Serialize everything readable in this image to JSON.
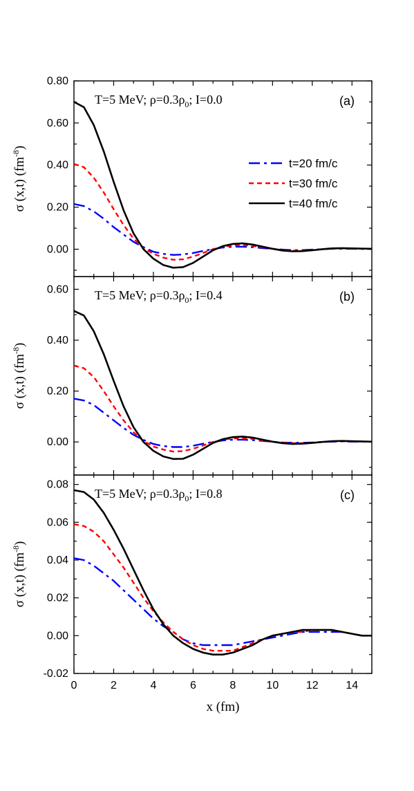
{
  "chart_data": {
    "type": "line",
    "xlabel": "x (fm)",
    "xlim": [
      0,
      15
    ],
    "x_ticks": [
      "0",
      "2",
      "4",
      "6",
      "8",
      "10",
      "12",
      "14"
    ],
    "legend": {
      "placement": "upper-right of panel (a)",
      "entries": [
        "t=20 fm/c",
        "t=30 fm/c",
        "t=40 fm/c"
      ]
    },
    "series_styles": [
      {
        "label": "t=20 fm/c",
        "color": "#0000ff",
        "dash": "dash-dot"
      },
      {
        "label": "t=30 fm/c",
        "color": "#ff0000",
        "dash": "dash"
      },
      {
        "label": "t=40 fm/c",
        "color": "#000000",
        "dash": "solid"
      }
    ],
    "panels": [
      {
        "tag": "(a)",
        "annotation_main": "T=5 MeV; ρ=0.3ρ",
        "annotation_sub": "0",
        "annotation_tail": "; I=0.0",
        "ylabel_main": "σ (x,t) (fm",
        "ylabel_sup": "-8",
        "ylabel_tail": ")",
        "ylim": [
          -0.13,
          0.8
        ],
        "y_ticks": [
          {
            "v": 0.0,
            "label": "0.00"
          },
          {
            "v": 0.2,
            "label": "0.20"
          },
          {
            "v": 0.4,
            "label": "0.40"
          },
          {
            "v": 0.6,
            "label": "0.60"
          },
          {
            "v": 0.8,
            "label": "0.80"
          }
        ],
        "series": [
          {
            "name": "t=20 fm/c",
            "x": [
              0,
              0.5,
              1,
              1.5,
              2,
              2.5,
              3,
              3.5,
              4,
              4.5,
              5,
              5.5,
              6,
              6.5,
              7,
              7.5,
              8,
              8.5,
              9,
              9.5,
              10,
              10.5,
              11,
              11.5,
              12,
              12.5,
              13,
              13.5,
              14,
              14.5,
              15
            ],
            "values": [
              0.215,
              0.205,
              0.18,
              0.145,
              0.105,
              0.07,
              0.035,
              0.01,
              -0.012,
              -0.022,
              -0.027,
              -0.025,
              -0.018,
              -0.008,
              0.0,
              0.008,
              0.012,
              0.012,
              0.01,
              0.005,
              0.002,
              -0.002,
              -0.004,
              -0.004,
              -0.002,
              0.0,
              0.002,
              0.002,
              0.002,
              0.001,
              0.001
            ]
          },
          {
            "name": "t=30 fm/c",
            "x": [
              0,
              0.5,
              1,
              1.5,
              2,
              2.5,
              3,
              3.5,
              4,
              4.5,
              5,
              5.5,
              6,
              6.5,
              7,
              7.5,
              8,
              8.5,
              9,
              9.5,
              10,
              10.5,
              11,
              11.5,
              12,
              12.5,
              13,
              13.5,
              14,
              14.5,
              15
            ],
            "values": [
              0.405,
              0.39,
              0.34,
              0.27,
              0.19,
              0.115,
              0.05,
              0.005,
              -0.022,
              -0.04,
              -0.05,
              -0.048,
              -0.035,
              -0.018,
              0.0,
              0.012,
              0.018,
              0.02,
              0.016,
              0.008,
              0.002,
              -0.004,
              -0.007,
              -0.007,
              -0.004,
              0.0,
              0.003,
              0.004,
              0.003,
              0.002,
              0.001
            ]
          },
          {
            "name": "t=40 fm/c",
            "x": [
              0,
              0.5,
              1,
              1.5,
              2,
              2.5,
              3,
              3.5,
              4,
              4.5,
              5,
              5.5,
              6,
              6.5,
              7,
              7.5,
              8,
              8.5,
              9,
              9.5,
              10,
              10.5,
              11,
              11.5,
              12,
              12.5,
              13,
              13.5,
              14,
              14.5,
              15
            ],
            "values": [
              0.7,
              0.675,
              0.59,
              0.465,
              0.32,
              0.185,
              0.075,
              0.0,
              -0.045,
              -0.075,
              -0.088,
              -0.085,
              -0.065,
              -0.035,
              -0.005,
              0.015,
              0.025,
              0.028,
              0.022,
              0.012,
              0.002,
              -0.006,
              -0.01,
              -0.009,
              -0.005,
              0.0,
              0.004,
              0.005,
              0.004,
              0.003,
              0.002
            ]
          }
        ]
      },
      {
        "tag": "(b)",
        "annotation_main": "T=5 MeV; ρ=0.3ρ",
        "annotation_sub": "0",
        "annotation_tail": "; I=0.4",
        "ylabel_main": "σ (x,t) (fm",
        "ylabel_sup": "-8",
        "ylabel_tail": ")",
        "ylim": [
          -0.13,
          0.65
        ],
        "y_ticks": [
          {
            "v": 0.0,
            "label": "0.00"
          },
          {
            "v": 0.2,
            "label": "0.20"
          },
          {
            "v": 0.4,
            "label": "0.40"
          },
          {
            "v": 0.6,
            "label": "0.60"
          }
        ],
        "series": [
          {
            "name": "t=20 fm/c",
            "x": [
              0,
              0.5,
              1,
              1.5,
              2,
              2.5,
              3,
              3.5,
              4,
              4.5,
              5,
              5.5,
              6,
              6.5,
              7,
              7.5,
              8,
              8.5,
              9,
              9.5,
              10,
              10.5,
              11,
              11.5,
              12,
              12.5,
              13,
              13.5,
              14,
              14.5,
              15
            ],
            "values": [
              0.17,
              0.163,
              0.145,
              0.115,
              0.085,
              0.055,
              0.028,
              0.008,
              -0.008,
              -0.016,
              -0.02,
              -0.02,
              -0.015,
              -0.007,
              0.0,
              0.006,
              0.009,
              0.009,
              0.007,
              0.004,
              0.001,
              -0.002,
              -0.003,
              -0.003,
              -0.002,
              0.0,
              0.001,
              0.002,
              0.001,
              0.001,
              0.001
            ]
          },
          {
            "name": "t=30 fm/c",
            "x": [
              0,
              0.5,
              1,
              1.5,
              2,
              2.5,
              3,
              3.5,
              4,
              4.5,
              5,
              5.5,
              6,
              6.5,
              7,
              7.5,
              8,
              8.5,
              9,
              9.5,
              10,
              10.5,
              11,
              11.5,
              12,
              12.5,
              13,
              13.5,
              14,
              14.5,
              15
            ],
            "values": [
              0.3,
              0.29,
              0.255,
              0.2,
              0.14,
              0.085,
              0.038,
              0.004,
              -0.018,
              -0.03,
              -0.038,
              -0.036,
              -0.027,
              -0.014,
              0.0,
              0.009,
              0.014,
              0.015,
              0.012,
              0.006,
              0.001,
              -0.003,
              -0.005,
              -0.005,
              -0.003,
              0.0,
              0.002,
              0.003,
              0.002,
              0.002,
              0.001
            ]
          },
          {
            "name": "t=40 fm/c",
            "x": [
              0,
              0.5,
              1,
              1.5,
              2,
              2.5,
              3,
              3.5,
              4,
              4.5,
              5,
              5.5,
              6,
              6.5,
              7,
              7.5,
              8,
              8.5,
              9,
              9.5,
              10,
              10.5,
              11,
              11.5,
              12,
              12.5,
              13,
              13.5,
              14,
              14.5,
              15
            ],
            "values": [
              0.515,
              0.497,
              0.435,
              0.345,
              0.24,
              0.14,
              0.058,
              0.0,
              -0.035,
              -0.057,
              -0.067,
              -0.066,
              -0.05,
              -0.027,
              -0.004,
              0.011,
              0.019,
              0.021,
              0.017,
              0.009,
              0.001,
              -0.005,
              -0.008,
              -0.007,
              -0.004,
              0.0,
              0.003,
              0.004,
              0.003,
              0.002,
              0.001
            ]
          }
        ]
      },
      {
        "tag": "(c)",
        "annotation_main": "T=5 MeV; ρ=0.3ρ",
        "annotation_sub": "0",
        "annotation_tail": "; I=0.8",
        "ylabel_main": "σ (x,t) (fm",
        "ylabel_sup": "-8",
        "ylabel_tail": ")",
        "ylim": [
          -0.02,
          0.085
        ],
        "y_ticks": [
          {
            "v": -0.02,
            "label": "-0.02"
          },
          {
            "v": 0.0,
            "label": "0.00"
          },
          {
            "v": 0.02,
            "label": "0.02"
          },
          {
            "v": 0.04,
            "label": "0.04"
          },
          {
            "v": 0.06,
            "label": "0.06"
          },
          {
            "v": 0.08,
            "label": "0.08"
          }
        ],
        "series": [
          {
            "name": "t=20 fm/c",
            "x": [
              0,
              0.5,
              1,
              1.5,
              2,
              2.5,
              3,
              3.5,
              4,
              4.5,
              5,
              5.5,
              6,
              6.5,
              7,
              7.5,
              8,
              8.5,
              9,
              9.5,
              10,
              10.5,
              11,
              11.5,
              12,
              12.5,
              13,
              13.5,
              14,
              14.5,
              15
            ],
            "values": [
              0.041,
              0.04,
              0.037,
              0.033,
              0.029,
              0.024,
              0.019,
              0.014,
              0.009,
              0.005,
              0.002,
              -0.002,
              -0.004,
              -0.005,
              -0.005,
              -0.005,
              -0.005,
              -0.004,
              -0.003,
              -0.002,
              -0.001,
              0.0,
              0.001,
              0.002,
              0.002,
              0.002,
              0.002,
              0.002,
              0.001,
              0.0,
              0.0
            ]
          },
          {
            "name": "t=30 fm/c",
            "x": [
              0,
              0.5,
              1,
              1.5,
              2,
              2.5,
              3,
              3.5,
              4,
              4.5,
              5,
              5.5,
              6,
              6.5,
              7,
              7.5,
              8,
              8.5,
              9,
              9.5,
              10,
              10.5,
              11,
              11.5,
              12,
              12.5,
              13,
              13.5,
              14,
              14.5,
              15
            ],
            "values": [
              0.059,
              0.058,
              0.055,
              0.05,
              0.043,
              0.036,
              0.028,
              0.02,
              0.013,
              0.007,
              0.002,
              -0.002,
              -0.005,
              -0.007,
              -0.008,
              -0.008,
              -0.008,
              -0.006,
              -0.004,
              -0.002,
              0.0,
              0.001,
              0.002,
              0.002,
              0.003,
              0.003,
              0.003,
              0.002,
              0.001,
              0.0,
              0.0
            ]
          },
          {
            "name": "t=40 fm/c",
            "x": [
              0,
              0.5,
              1,
              1.5,
              2,
              2.5,
              3,
              3.5,
              4,
              4.5,
              5,
              5.5,
              6,
              6.5,
              7,
              7.5,
              8,
              8.5,
              9,
              9.5,
              10,
              10.5,
              11,
              11.5,
              12,
              12.5,
              13,
              13.5,
              14,
              14.5,
              15
            ],
            "values": [
              0.077,
              0.076,
              0.072,
              0.065,
              0.056,
              0.046,
              0.035,
              0.024,
              0.014,
              0.006,
              0.0,
              -0.004,
              -0.007,
              -0.009,
              -0.01,
              -0.01,
              -0.009,
              -0.007,
              -0.005,
              -0.002,
              0.0,
              0.001,
              0.002,
              0.003,
              0.003,
              0.003,
              0.003,
              0.002,
              0.001,
              0.0,
              0.0
            ]
          }
        ]
      }
    ]
  }
}
